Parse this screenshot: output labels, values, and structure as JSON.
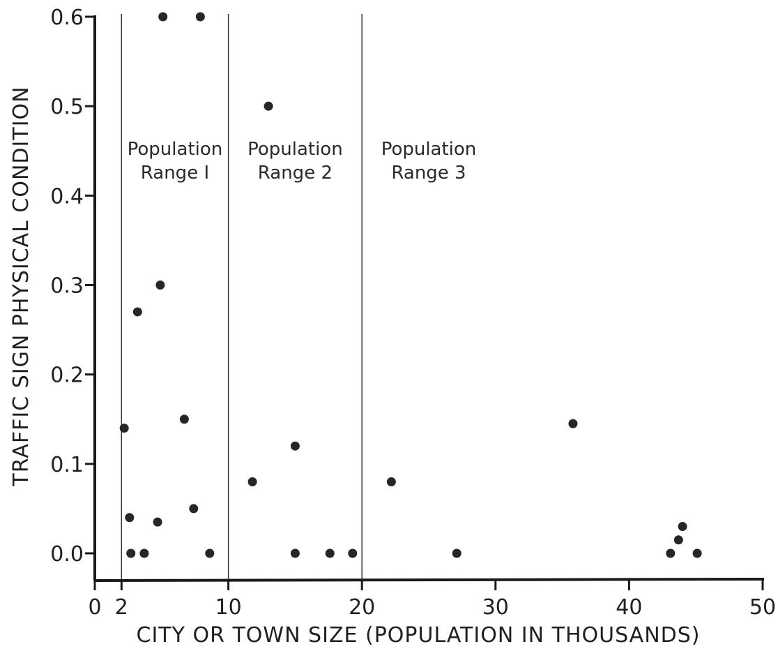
{
  "chart_data": {
    "type": "scatter",
    "xlabel": "CITY OR TOWN SIZE (POPULATION IN THOUSANDS)",
    "ylabel": "TRAFFIC SIGN PHYSICAL CONDITION",
    "xlim": [
      0,
      50
    ],
    "ylim": [
      0,
      0.6
    ],
    "x_ticks": [
      0,
      2,
      10,
      20,
      30,
      40,
      50
    ],
    "x_tick_labels": [
      "0",
      "2",
      "10",
      "20",
      "30",
      "40",
      "50"
    ],
    "y_ticks": [
      0.0,
      0.1,
      0.2,
      0.3,
      0.4,
      0.5,
      0.6
    ],
    "y_tick_labels": [
      "0.0",
      "0.1",
      "0.2",
      "0.3",
      "0.4",
      "0.5",
      "0.6"
    ],
    "grid": false,
    "range_dividers": [
      2,
      10,
      20
    ],
    "range_labels": [
      {
        "line1": "Population",
        "line2": "Range I",
        "x": 6
      },
      {
        "line1": "Population",
        "line2": "Range 2",
        "x": 15
      },
      {
        "line1": "Population",
        "line2": "Range 3",
        "x": 25
      }
    ],
    "points": [
      {
        "x": 2.2,
        "y": 0.14
      },
      {
        "x": 2.6,
        "y": 0.04
      },
      {
        "x": 2.7,
        "y": 0.0
      },
      {
        "x": 3.2,
        "y": 0.27
      },
      {
        "x": 3.7,
        "y": 0.0
      },
      {
        "x": 4.7,
        "y": 0.035
      },
      {
        "x": 4.9,
        "y": 0.3
      },
      {
        "x": 5.1,
        "y": 0.6
      },
      {
        "x": 6.7,
        "y": 0.15
      },
      {
        "x": 7.4,
        "y": 0.05
      },
      {
        "x": 7.9,
        "y": 0.6
      },
      {
        "x": 8.6,
        "y": 0.0
      },
      {
        "x": 11.8,
        "y": 0.08
      },
      {
        "x": 13.0,
        "y": 0.5
      },
      {
        "x": 15.0,
        "y": 0.12
      },
      {
        "x": 15.0,
        "y": 0.0
      },
      {
        "x": 17.6,
        "y": 0.0
      },
      {
        "x": 19.3,
        "y": 0.0
      },
      {
        "x": 22.2,
        "y": 0.08
      },
      {
        "x": 27.1,
        "y": 0.0
      },
      {
        "x": 35.8,
        "y": 0.145
      },
      {
        "x": 43.1,
        "y": 0.0
      },
      {
        "x": 43.7,
        "y": 0.015
      },
      {
        "x": 44.0,
        "y": 0.03
      },
      {
        "x": 45.1,
        "y": 0.0
      }
    ]
  }
}
